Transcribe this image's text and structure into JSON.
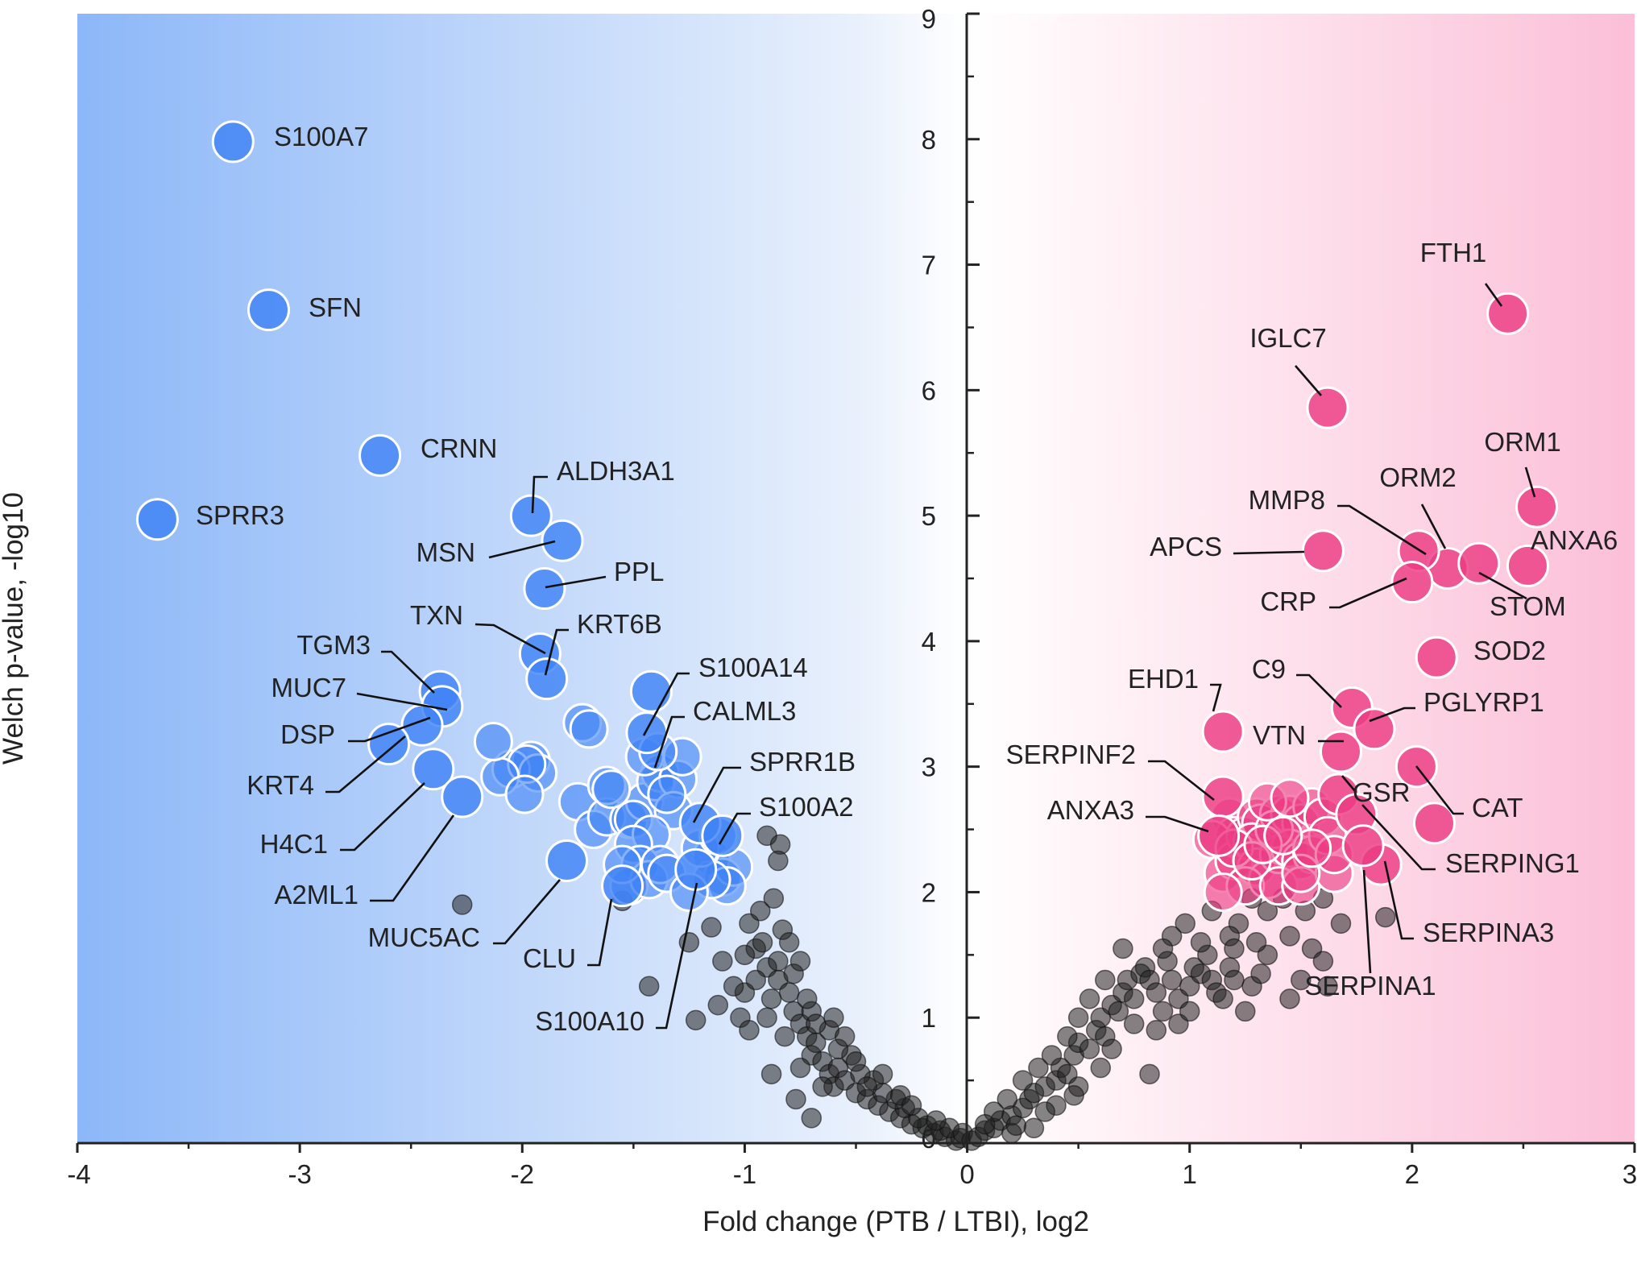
{
  "chart_data": {
    "type": "scatter",
    "subtype": "volcano",
    "title": "",
    "xlabel": "Fold change (PTB / LTBI), log2",
    "ylabel": "Welch p-value, -log10",
    "xlim": [
      -4,
      3
    ],
    "ylim": [
      0,
      9
    ],
    "x_ticks": [
      -4,
      -3,
      -2,
      -1,
      0,
      1,
      2,
      3
    ],
    "y_ticks": [
      0,
      1,
      2,
      3,
      4,
      5,
      6,
      7,
      8,
      9
    ],
    "x_tick_labels": [
      "-4",
      "-3",
      "-2",
      "-1",
      "0",
      "1",
      "2",
      "3"
    ],
    "y_tick_labels": [
      "0",
      "1",
      "2",
      "3",
      "4",
      "5",
      "6",
      "7",
      "8",
      "9"
    ],
    "grid": false,
    "y_axis_position": "x = 0",
    "background": "blue gradient (left, down-regulated) to white at 0 to pink gradient (right, up-regulated)",
    "colors": {
      "down": "#3f82f5",
      "up": "#ec3a82",
      "ns": "#2a2a2a",
      "bg_left": "#8cb7f8",
      "bg_right": "#fbbfd7"
    },
    "labeled_down": [
      {
        "name": "S100A7",
        "x": -3.3,
        "y": 7.98
      },
      {
        "name": "SFN",
        "x": -3.14,
        "y": 6.64
      },
      {
        "name": "CRNN",
        "x": -2.64,
        "y": 5.48
      },
      {
        "name": "SPRR3",
        "x": -3.64,
        "y": 4.97
      },
      {
        "name": "ALDH3A1",
        "x": -1.96,
        "y": 5.0
      },
      {
        "name": "MSN",
        "x": -1.82,
        "y": 4.8
      },
      {
        "name": "PPL",
        "x": -1.9,
        "y": 4.42
      },
      {
        "name": "TXN",
        "x": -1.92,
        "y": 3.9
      },
      {
        "name": "KRT6B",
        "x": -1.89,
        "y": 3.7
      },
      {
        "name": "TGM3",
        "x": -2.37,
        "y": 3.6
      },
      {
        "name": "MUC7",
        "x": -2.36,
        "y": 3.48
      },
      {
        "name": "DSP",
        "x": -2.45,
        "y": 3.33
      },
      {
        "name": "KRT4",
        "x": -2.6,
        "y": 3.18
      },
      {
        "name": "H4C1",
        "x": -2.4,
        "y": 2.98
      },
      {
        "name": "A2ML1",
        "x": -2.27,
        "y": 2.76
      },
      {
        "name": "S100A14",
        "x": -1.42,
        "y": 3.6
      },
      {
        "name": "CALML3",
        "x": -1.44,
        "y": 3.27
      },
      {
        "name": "SPRR1B",
        "x": -1.2,
        "y": 2.55
      },
      {
        "name": "S100A2",
        "x": -1.1,
        "y": 2.45
      },
      {
        "name": "MUC5AC",
        "x": -1.8,
        "y": 2.25
      },
      {
        "name": "CLU",
        "x": -1.55,
        "y": 2.05
      },
      {
        "name": "S100A10",
        "x": -1.22,
        "y": 2.18
      }
    ],
    "labeled_up": [
      {
        "name": "FTH1",
        "x": 2.43,
        "y": 6.61
      },
      {
        "name": "IGLC7",
        "x": 1.62,
        "y": 5.86
      },
      {
        "name": "ORM1",
        "x": 2.56,
        "y": 5.07
      },
      {
        "name": "ORM2",
        "x": 2.16,
        "y": 4.58
      },
      {
        "name": "MMP8",
        "x": 2.03,
        "y": 4.72
      },
      {
        "name": "APCS",
        "x": 1.6,
        "y": 4.72
      },
      {
        "name": "ANXA6",
        "x": 2.52,
        "y": 4.6
      },
      {
        "name": "STOM",
        "x": 2.3,
        "y": 4.62
      },
      {
        "name": "CRP",
        "x": 2.0,
        "y": 4.47
      },
      {
        "name": "SOD2",
        "x": 2.11,
        "y": 3.87
      },
      {
        "name": "C9",
        "x": 1.73,
        "y": 3.47
      },
      {
        "name": "EHD1",
        "x": 1.15,
        "y": 3.28
      },
      {
        "name": "PGLYRP1",
        "x": 1.83,
        "y": 3.3
      },
      {
        "name": "VTN",
        "x": 1.68,
        "y": 3.12
      },
      {
        "name": "SERPINF2",
        "x": 1.15,
        "y": 2.76
      },
      {
        "name": "GSR",
        "x": 1.67,
        "y": 2.78
      },
      {
        "name": "CAT",
        "x": 2.02,
        "y": 3.0
      },
      {
        "name": "ANXA3",
        "x": 1.13,
        "y": 2.45
      },
      {
        "name": "SERPING1",
        "x": 1.75,
        "y": 2.62
      },
      {
        "name": "SERPINA3",
        "x": 1.86,
        "y": 2.22
      },
      {
        "name": "SERPINA1",
        "x": 1.78,
        "y": 2.37
      },
      {
        "name": "",
        "x": 2.1,
        "y": 2.55
      }
    ],
    "unlabeled_down": [
      [
        -1.96,
        3.05
      ],
      [
        -2.05,
        2.98
      ],
      [
        -1.93,
        2.95
      ],
      [
        -1.98,
        3.02
      ],
      [
        -2.1,
        2.92
      ],
      [
        -2.13,
        3.2
      ],
      [
        -1.99,
        2.78
      ],
      [
        -1.75,
        2.72
      ],
      [
        -1.68,
        2.5
      ],
      [
        -1.62,
        2.6
      ],
      [
        -1.73,
        3.35
      ],
      [
        -1.7,
        3.3
      ],
      [
        -1.62,
        2.85
      ],
      [
        -1.52,
        2.58
      ],
      [
        -1.45,
        2.72
      ],
      [
        -1.5,
        2.58
      ],
      [
        -1.38,
        2.95
      ],
      [
        -1.4,
        2.88
      ],
      [
        -1.3,
        2.9
      ],
      [
        -1.32,
        2.65
      ],
      [
        -1.42,
        2.46
      ],
      [
        -1.5,
        2.38
      ],
      [
        -1.6,
        2.82
      ],
      [
        -1.35,
        2.78
      ],
      [
        -1.28,
        3.08
      ],
      [
        -1.47,
        2.22
      ],
      [
        -1.52,
        2.05
      ],
      [
        -1.43,
        2.1
      ],
      [
        -1.38,
        2.22
      ],
      [
        -1.35,
        2.15
      ],
      [
        -1.15,
        2.28
      ],
      [
        -1.1,
        2.12
      ],
      [
        -1.05,
        2.2
      ],
      [
        -1.08,
        2.05
      ],
      [
        -1.15,
        2.1
      ],
      [
        -1.25,
        2.0
      ],
      [
        -1.2,
        2.35
      ],
      [
        -1.12,
        2.45
      ],
      [
        -1.55,
        2.22
      ],
      [
        -1.45,
        3.08
      ],
      [
        -1.39,
        3.12
      ]
    ],
    "unlabeled_up": [
      [
        1.18,
        2.6
      ],
      [
        1.2,
        2.45
      ],
      [
        1.1,
        2.42
      ],
      [
        1.15,
        2.15
      ],
      [
        1.2,
        2.25
      ],
      [
        1.25,
        2.45
      ],
      [
        1.3,
        2.6
      ],
      [
        1.32,
        2.55
      ],
      [
        1.4,
        2.62
      ],
      [
        1.45,
        2.62
      ],
      [
        1.5,
        2.55
      ],
      [
        1.55,
        2.68
      ],
      [
        1.28,
        2.4
      ],
      [
        1.3,
        2.2
      ],
      [
        1.35,
        2.1
      ],
      [
        1.4,
        2.3
      ],
      [
        1.45,
        2.35
      ],
      [
        1.5,
        2.25
      ],
      [
        1.55,
        2.3
      ],
      [
        1.38,
        2.5
      ],
      [
        1.25,
        2.05
      ],
      [
        1.15,
        2.0
      ],
      [
        1.4,
        2.05
      ],
      [
        1.5,
        2.05
      ],
      [
        1.65,
        2.15
      ],
      [
        1.6,
        2.6
      ],
      [
        1.62,
        2.45
      ],
      [
        1.35,
        2.72
      ],
      [
        1.45,
        2.75
      ],
      [
        1.2,
        2.35
      ],
      [
        1.5,
        2.15
      ],
      [
        1.28,
        2.25
      ],
      [
        1.33,
        2.38
      ],
      [
        1.65,
        2.3
      ],
      [
        1.55,
        2.35
      ],
      [
        1.42,
        2.45
      ]
    ],
    "non_significant_points": [
      [
        -2.27,
        1.9
      ],
      [
        -0.9,
        2.45
      ],
      [
        -0.84,
        2.38
      ],
      [
        -0.85,
        2.25
      ],
      [
        -1.55,
        1.93
      ],
      [
        -1.43,
        1.25
      ],
      [
        -1.25,
        1.6
      ],
      [
        -1.15,
        1.72
      ],
      [
        -1.1,
        1.45
      ],
      [
        -1.0,
        1.2
      ],
      [
        -1.12,
        1.1
      ],
      [
        -1.22,
        0.98
      ],
      [
        -0.98,
        1.75
      ],
      [
        -0.95,
        1.55
      ],
      [
        -0.9,
        1.4
      ],
      [
        -0.92,
        1.6
      ],
      [
        -1.05,
        1.25
      ],
      [
        -1.02,
        1.0
      ],
      [
        -0.98,
        0.9
      ],
      [
        -0.9,
        1.0
      ],
      [
        -0.88,
        1.15
      ],
      [
        -0.85,
        1.3
      ],
      [
        -0.85,
        1.45
      ],
      [
        -0.83,
        1.7
      ],
      [
        -0.8,
        1.2
      ],
      [
        -0.78,
        1.05
      ],
      [
        -0.75,
        0.95
      ],
      [
        -0.72,
        0.85
      ],
      [
        -0.7,
        0.7
      ],
      [
        -0.75,
        0.6
      ],
      [
        -0.68,
        0.8
      ],
      [
        -0.65,
        0.65
      ],
      [
        -0.62,
        0.55
      ],
      [
        -0.6,
        0.45
      ],
      [
        -0.65,
        0.45
      ],
      [
        -0.58,
        0.6
      ],
      [
        -0.55,
        0.5
      ],
      [
        -0.5,
        0.4
      ],
      [
        -0.45,
        0.35
      ],
      [
        -0.4,
        0.3
      ],
      [
        -0.35,
        0.25
      ],
      [
        -0.3,
        0.2
      ],
      [
        -0.25,
        0.15
      ],
      [
        -0.2,
        0.12
      ],
      [
        -0.15,
        0.08
      ],
      [
        -0.1,
        0.05
      ],
      [
        -0.05,
        0.02
      ],
      [
        -0.03,
        0.04
      ],
      [
        -0.12,
        0.1
      ],
      [
        -0.18,
        0.14
      ],
      [
        -0.22,
        0.2
      ],
      [
        -0.28,
        0.28
      ],
      [
        -0.32,
        0.35
      ],
      [
        -0.38,
        0.4
      ],
      [
        -0.42,
        0.5
      ],
      [
        -0.48,
        0.55
      ],
      [
        -0.52,
        0.7
      ],
      [
        -0.58,
        0.75
      ],
      [
        -0.62,
        0.9
      ],
      [
        -0.7,
        1.05
      ],
      [
        -0.77,
        0.35
      ],
      [
        -0.7,
        0.2
      ],
      [
        -0.82,
        0.85
      ],
      [
        -0.88,
        0.55
      ],
      [
        -0.78,
        1.35
      ],
      [
        -0.72,
        1.15
      ],
      [
        -0.68,
        0.95
      ],
      [
        -0.6,
        1.0
      ],
      [
        -0.55,
        0.85
      ],
      [
        -0.5,
        0.65
      ],
      [
        -0.45,
        0.45
      ],
      [
        -0.38,
        0.55
      ],
      [
        -0.3,
        0.38
      ],
      [
        -0.25,
        0.3
      ],
      [
        -0.95,
        1.3
      ],
      [
        -1.0,
        1.5
      ],
      [
        -0.93,
        1.85
      ],
      [
        -0.87,
        1.95
      ],
      [
        -0.8,
        1.6
      ],
      [
        -0.75,
        1.45
      ],
      [
        -0.08,
        0.12
      ],
      [
        -0.14,
        0.18
      ],
      [
        -0.02,
        0.08
      ],
      [
        0.02,
        0.02
      ],
      [
        0.05,
        0.05
      ],
      [
        0.08,
        0.1
      ],
      [
        0.12,
        0.12
      ],
      [
        0.15,
        0.18
      ],
      [
        0.2,
        0.22
      ],
      [
        0.25,
        0.28
      ],
      [
        0.28,
        0.35
      ],
      [
        0.3,
        0.4
      ],
      [
        0.35,
        0.45
      ],
      [
        0.4,
        0.5
      ],
      [
        0.42,
        0.6
      ],
      [
        0.45,
        0.55
      ],
      [
        0.48,
        0.7
      ],
      [
        0.5,
        0.8
      ],
      [
        0.55,
        0.75
      ],
      [
        0.58,
        0.9
      ],
      [
        0.6,
        1.0
      ],
      [
        0.62,
        0.85
      ],
      [
        0.65,
        1.1
      ],
      [
        0.68,
        1.05
      ],
      [
        0.7,
        1.2
      ],
      [
        0.72,
        1.3
      ],
      [
        0.75,
        1.15
      ],
      [
        0.78,
        1.35
      ],
      [
        0.8,
        1.4
      ],
      [
        0.82,
        1.3
      ],
      [
        0.85,
        1.2
      ],
      [
        0.88,
        1.05
      ],
      [
        0.9,
        1.45
      ],
      [
        0.92,
        1.3
      ],
      [
        0.95,
        1.15
      ],
      [
        1.0,
        1.25
      ],
      [
        1.02,
        1.4
      ],
      [
        1.05,
        1.35
      ],
      [
        1.08,
        1.5
      ],
      [
        1.1,
        1.3
      ],
      [
        1.12,
        1.2
      ],
      [
        1.15,
        1.15
      ],
      [
        1.18,
        1.4
      ],
      [
        1.2,
        1.3
      ],
      [
        1.25,
        1.05
      ],
      [
        1.28,
        1.25
      ],
      [
        1.32,
        1.35
      ],
      [
        1.35,
        1.5
      ],
      [
        0.7,
        1.55
      ],
      [
        0.62,
        1.3
      ],
      [
        0.55,
        1.15
      ],
      [
        0.5,
        1.0
      ],
      [
        0.45,
        0.85
      ],
      [
        0.38,
        0.7
      ],
      [
        0.32,
        0.6
      ],
      [
        0.25,
        0.5
      ],
      [
        0.18,
        0.35
      ],
      [
        0.12,
        0.25
      ],
      [
        0.08,
        0.15
      ],
      [
        0.4,
        0.3
      ],
      [
        0.5,
        0.45
      ],
      [
        0.6,
        0.6
      ],
      [
        0.65,
        0.75
      ],
      [
        0.75,
        0.95
      ],
      [
        0.85,
        0.9
      ],
      [
        0.95,
        0.95
      ],
      [
        1.0,
        1.05
      ],
      [
        0.82,
        0.55
      ],
      [
        0.48,
        0.38
      ],
      [
        0.35,
        0.25
      ],
      [
        1.88,
        1.8
      ],
      [
        1.68,
        1.75
      ],
      [
        1.52,
        1.85
      ],
      [
        1.42,
        1.95
      ],
      [
        1.35,
        1.85
      ],
      [
        1.22,
        1.75
      ],
      [
        1.18,
        1.65
      ],
      [
        1.45,
        1.65
      ],
      [
        1.55,
        1.55
      ],
      [
        1.6,
        1.45
      ],
      [
        1.5,
        1.3
      ],
      [
        1.45,
        1.15
      ],
      [
        1.62,
        1.25
      ],
      [
        1.3,
        1.6
      ],
      [
        1.2,
        1.55
      ],
      [
        1.05,
        1.6
      ],
      [
        0.98,
        1.75
      ],
      [
        0.92,
        1.65
      ],
      [
        0.88,
        1.55
      ],
      [
        1.1,
        1.85
      ],
      [
        1.28,
        1.95
      ],
      [
        1.6,
        1.95
      ],
      [
        0.3,
        0.12
      ],
      [
        0.2,
        0.08
      ],
      [
        0.22,
        0.14
      ]
    ]
  }
}
